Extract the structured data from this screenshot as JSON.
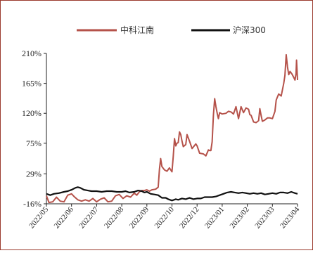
{
  "chart_data": {
    "type": "line",
    "title": "",
    "xlabel": "",
    "ylabel": "",
    "ylim": [
      -16,
      210
    ],
    "yticks": [
      "210%",
      "165%",
      "120%",
      "75%",
      "29%",
      "-16%"
    ],
    "ytick_values": [
      210,
      165,
      120,
      75,
      29,
      -16
    ],
    "x_categories": [
      "2022/05",
      "2022/06",
      "2022/07",
      "2022/08",
      "2022/09",
      "2022/10",
      "2022/12",
      "2023/01",
      "2023/02",
      "2023/03",
      "2023/04"
    ],
    "legend_position": "top",
    "grid": false,
    "colors": {
      "axis": "#222222"
    },
    "series": [
      {
        "name": "中科江南",
        "color": "#b5524a",
        "points": [
          [
            0.0,
            -4
          ],
          [
            0.1,
            -14
          ],
          [
            0.25,
            -13
          ],
          [
            0.4,
            -6
          ],
          [
            0.55,
            -12
          ],
          [
            0.7,
            -13
          ],
          [
            0.85,
            -3
          ],
          [
            1.0,
            -1
          ],
          [
            1.1,
            -5
          ],
          [
            1.25,
            -10
          ],
          [
            1.4,
            -12
          ],
          [
            1.55,
            -10
          ],
          [
            1.7,
            -12
          ],
          [
            1.85,
            -8
          ],
          [
            2.0,
            -13
          ],
          [
            2.15,
            -9
          ],
          [
            2.3,
            -7
          ],
          [
            2.45,
            -13
          ],
          [
            2.6,
            -12
          ],
          [
            2.75,
            -4
          ],
          [
            2.9,
            -2
          ],
          [
            3.05,
            -8
          ],
          [
            3.2,
            -4
          ],
          [
            3.35,
            -6
          ],
          [
            3.5,
            0
          ],
          [
            3.6,
            -3
          ],
          [
            3.7,
            2
          ],
          [
            3.8,
            4
          ],
          [
            3.9,
            4
          ],
          [
            4.0,
            5
          ],
          [
            4.1,
            3
          ],
          [
            4.2,
            5
          ],
          [
            4.35,
            6
          ],
          [
            4.45,
            9
          ],
          [
            4.5,
            36
          ],
          [
            4.55,
            52
          ],
          [
            4.6,
            40
          ],
          [
            4.7,
            35
          ],
          [
            4.8,
            33
          ],
          [
            4.9,
            38
          ],
          [
            5.0,
            32
          ],
          [
            5.05,
            55
          ],
          [
            5.1,
            82
          ],
          [
            5.15,
            71
          ],
          [
            5.2,
            75
          ],
          [
            5.25,
            76
          ],
          [
            5.3,
            92
          ],
          [
            5.35,
            88
          ],
          [
            5.4,
            78
          ],
          [
            5.45,
            70
          ],
          [
            5.55,
            73
          ],
          [
            5.6,
            88
          ],
          [
            5.7,
            78
          ],
          [
            5.8,
            67
          ],
          [
            5.95,
            74
          ],
          [
            6.0,
            71
          ],
          [
            6.1,
            60
          ],
          [
            6.25,
            59
          ],
          [
            6.35,
            56
          ],
          [
            6.45,
            65
          ],
          [
            6.5,
            64
          ],
          [
            6.55,
            64
          ],
          [
            6.6,
            77
          ],
          [
            6.65,
            117
          ],
          [
            6.7,
            142
          ],
          [
            6.75,
            130
          ],
          [
            6.8,
            120
          ],
          [
            6.85,
            112
          ],
          [
            6.9,
            121
          ],
          [
            7.0,
            119
          ],
          [
            7.15,
            120
          ],
          [
            7.25,
            123
          ],
          [
            7.35,
            122
          ],
          [
            7.45,
            119
          ],
          [
            7.55,
            130
          ],
          [
            7.65,
            112
          ],
          [
            7.75,
            130
          ],
          [
            7.85,
            121
          ],
          [
            7.95,
            128
          ],
          [
            8.05,
            126
          ],
          [
            8.1,
            118
          ],
          [
            8.15,
            117
          ],
          [
            8.25,
            107
          ],
          [
            8.35,
            106
          ],
          [
            8.45,
            109
          ],
          [
            8.5,
            127
          ],
          [
            8.55,
            117
          ],
          [
            8.6,
            108
          ],
          [
            8.7,
            110
          ],
          [
            8.8,
            113
          ],
          [
            8.9,
            113
          ],
          [
            9.0,
            112
          ],
          [
            9.1,
            123
          ],
          [
            9.15,
            140
          ],
          [
            9.25,
            149
          ],
          [
            9.35,
            146
          ],
          [
            9.45,
            165
          ],
          [
            9.5,
            177
          ],
          [
            9.55,
            208
          ],
          [
            9.6,
            190
          ],
          [
            9.65,
            178
          ],
          [
            9.7,
            183
          ],
          [
            9.78,
            179
          ],
          [
            9.85,
            174
          ],
          [
            9.9,
            170
          ],
          [
            9.94,
            180
          ],
          [
            9.96,
            200
          ],
          [
            10.0,
            170
          ]
        ]
      },
      {
        "name": "沪深300",
        "color": "#111111",
        "points": [
          [
            0.0,
            -1
          ],
          [
            0.15,
            -3
          ],
          [
            0.3,
            -1
          ],
          [
            0.5,
            0
          ],
          [
            0.7,
            2
          ],
          [
            0.85,
            3
          ],
          [
            1.0,
            5
          ],
          [
            1.15,
            8
          ],
          [
            1.25,
            9
          ],
          [
            1.35,
            8
          ],
          [
            1.5,
            5
          ],
          [
            1.65,
            4
          ],
          [
            1.8,
            3
          ],
          [
            2.0,
            3
          ],
          [
            2.2,
            2
          ],
          [
            2.4,
            3
          ],
          [
            2.6,
            3
          ],
          [
            2.8,
            2
          ],
          [
            3.0,
            2
          ],
          [
            3.15,
            3
          ],
          [
            3.3,
            1
          ],
          [
            3.5,
            2
          ],
          [
            3.65,
            4
          ],
          [
            3.8,
            3
          ],
          [
            3.9,
            1
          ],
          [
            4.0,
            2
          ],
          [
            4.15,
            -1
          ],
          [
            4.3,
            -2
          ],
          [
            4.45,
            -3
          ],
          [
            4.6,
            -7
          ],
          [
            4.75,
            -7
          ],
          [
            4.85,
            -9
          ],
          [
            5.0,
            -11
          ],
          [
            5.15,
            -9
          ],
          [
            5.25,
            -10
          ],
          [
            5.4,
            -8
          ],
          [
            5.55,
            -9
          ],
          [
            5.7,
            -7
          ],
          [
            5.85,
            -9
          ],
          [
            6.0,
            -8
          ],
          [
            6.15,
            -8
          ],
          [
            6.3,
            -6
          ],
          [
            6.45,
            -6
          ],
          [
            6.6,
            -6
          ],
          [
            6.75,
            -5
          ],
          [
            6.9,
            -3
          ],
          [
            7.05,
            -1
          ],
          [
            7.2,
            1
          ],
          [
            7.35,
            2
          ],
          [
            7.5,
            1
          ],
          [
            7.65,
            0
          ],
          [
            7.8,
            1
          ],
          [
            7.95,
            0
          ],
          [
            8.1,
            -1
          ],
          [
            8.25,
            0
          ],
          [
            8.4,
            -1
          ],
          [
            8.55,
            0
          ],
          [
            8.7,
            -2
          ],
          [
            8.85,
            -1
          ],
          [
            9.0,
            0
          ],
          [
            9.15,
            -1
          ],
          [
            9.3,
            1
          ],
          [
            9.45,
            1
          ],
          [
            9.6,
            0
          ],
          [
            9.75,
            2
          ],
          [
            9.9,
            0
          ],
          [
            10.0,
            -1
          ]
        ]
      }
    ]
  }
}
